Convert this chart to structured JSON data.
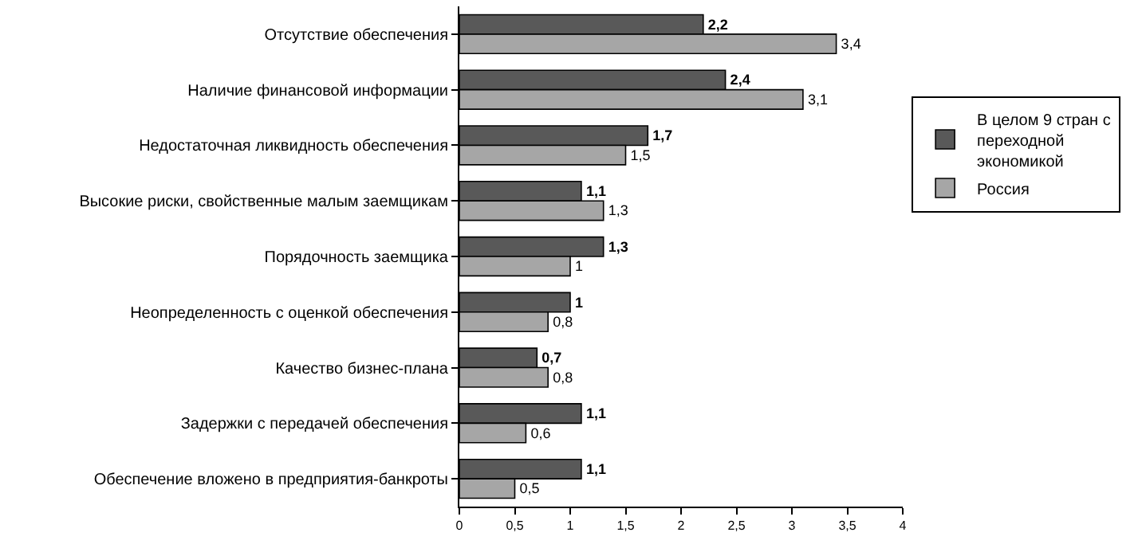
{
  "chart_data": {
    "type": "bar",
    "orientation": "horizontal",
    "categories": [
      "Отсутствие обеспечения",
      "Наличие финансовой информации",
      "Недостаточная ликвидность обеспечения",
      "Высокие риски, свойственные малым заемщикам",
      "Порядочность заемщика",
      "Неопределенность с оценкой обеспечения",
      "Качество бизнес-плана",
      "Задержки с передачей обеспечения",
      "Обеспечение вложено в предприятия-банкроты"
    ],
    "series": [
      {
        "name": "В целом 9 стран с переходной экономикой",
        "color": "#595959",
        "values": [
          2.2,
          2.4,
          1.7,
          1.1,
          1.3,
          1,
          0.7,
          1.1,
          1.1
        ],
        "value_labels": [
          "2,2",
          "2,4",
          "1,7",
          "1,1",
          "1,3",
          "1",
          "0,7",
          "1,1",
          "1,1"
        ]
      },
      {
        "name": "Россия",
        "color": "#a6a6a6",
        "values": [
          3.4,
          3.1,
          1.5,
          1.3,
          1,
          0.8,
          0.8,
          0.6,
          0.5
        ],
        "value_labels": [
          "3,4",
          "3,1",
          "1,5",
          "1,3",
          "1",
          "0,8",
          "0,8",
          "0,6",
          "0,5"
        ]
      }
    ],
    "xlim": [
      0,
      4
    ],
    "xticks": [
      0,
      {
        "value": 0.5,
        "label": "0,5"
      },
      1,
      {
        "value": 1.5,
        "label": "1,5"
      },
      2,
      {
        "value": 2.5,
        "label": "2,5"
      },
      3,
      {
        "value": 3.5,
        "label": "3,5"
      },
      4
    ],
    "legend": "right"
  }
}
